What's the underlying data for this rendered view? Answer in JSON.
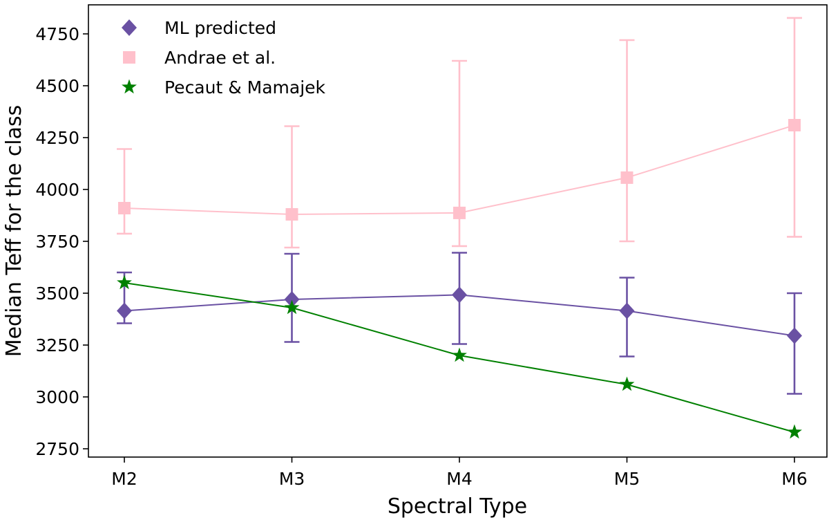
{
  "chart_data": {
    "type": "line",
    "title": "",
    "xlabel": "Spectral Type",
    "ylabel": "Median Teff for the class",
    "categories": [
      "M2",
      "M3",
      "M4",
      "M5",
      "M6"
    ],
    "ylim": [
      2710,
      4890
    ],
    "yticks": [
      2750,
      3000,
      3250,
      3500,
      3750,
      4000,
      4250,
      4500,
      4750
    ],
    "grid": false,
    "legend_position": "top-left",
    "series": [
      {
        "name": "ML predicted",
        "marker": "diamond",
        "color": "#6a51a3",
        "values": [
          3415,
          3470,
          3492,
          3415,
          3295
        ],
        "err_low": [
          3355,
          3265,
          3255,
          3195,
          3015
        ],
        "err_high": [
          3600,
          3690,
          3695,
          3575,
          3500
        ]
      },
      {
        "name": "Andrae et al.",
        "marker": "square",
        "color": "#ffc0cb",
        "values": [
          3910,
          3880,
          3887,
          4057,
          4310
        ],
        "err_low": [
          3787,
          3720,
          3727,
          3750,
          3772
        ],
        "err_high": [
          4195,
          4305,
          4620,
          4720,
          4827
        ]
      },
      {
        "name": "Pecaut & Mamajek",
        "marker": "star",
        "color": "#008000",
        "values": [
          3550,
          3430,
          3200,
          3060,
          2830
        ]
      }
    ]
  }
}
